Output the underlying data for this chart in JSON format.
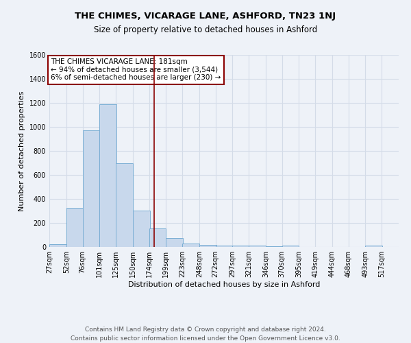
{
  "title": "THE CHIMES, VICARAGE LANE, ASHFORD, TN23 1NJ",
  "subtitle": "Size of property relative to detached houses in Ashford",
  "xlabel": "Distribution of detached houses by size in Ashford",
  "ylabel": "Number of detached properties",
  "footer_line1": "Contains HM Land Registry data © Crown copyright and database right 2024.",
  "footer_line2": "Contains public sector information licensed under the Open Government Licence v3.0.",
  "categories": [
    "27sqm",
    "52sqm",
    "76sqm",
    "101sqm",
    "125sqm",
    "150sqm",
    "174sqm",
    "199sqm",
    "223sqm",
    "248sqm",
    "272sqm",
    "297sqm",
    "321sqm",
    "346sqm",
    "370sqm",
    "395sqm",
    "419sqm",
    "444sqm",
    "468sqm",
    "493sqm",
    "517sqm"
  ],
  "values": [
    25,
    325,
    970,
    1190,
    700,
    305,
    155,
    75,
    30,
    20,
    12,
    10,
    10,
    8,
    12,
    0,
    0,
    0,
    0,
    12,
    0
  ],
  "bar_color": "#c8d8ec",
  "bar_edge_color": "#7aaed4",
  "grid_color": "#d4dce8",
  "background_color": "#eef2f8",
  "annotation_box_text_line1": "THE CHIMES VICARAGE LANE: 181sqm",
  "annotation_box_text_line2": "← 94% of detached houses are smaller (3,544)",
  "annotation_box_text_line3": "6% of semi-detached houses are larger (230) →",
  "property_line_x": 181,
  "ylim": [
    0,
    1600
  ],
  "yticks": [
    0,
    200,
    400,
    600,
    800,
    1000,
    1200,
    1400,
    1600
  ],
  "title_fontsize": 9.5,
  "subtitle_fontsize": 8.5,
  "axis_label_fontsize": 8,
  "tick_fontsize": 7,
  "annotation_fontsize": 7.5,
  "footer_fontsize": 6.5
}
